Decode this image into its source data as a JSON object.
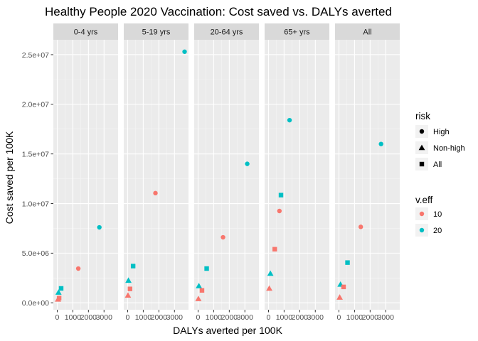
{
  "chart_data": {
    "type": "scatter",
    "title": "Healthy People 2020 Vaccination: Cost saved vs. DALYs averted",
    "xlabel": "DALYs averted per 100K",
    "ylabel": "Cost saved per 100K",
    "xlim": [
      -250,
      3900
    ],
    "ylim": [
      -700000,
      26500000
    ],
    "x_ticks": [
      0,
      1000,
      2000,
      3000
    ],
    "x_tick_labels": [
      "0",
      "1000",
      "2000",
      "3000"
    ],
    "y_ticks": [
      0,
      5000000,
      10000000,
      15000000,
      20000000,
      25000000
    ],
    "y_tick_labels": [
      "0.0e+00",
      "5.0e+06",
      "1.0e+07",
      "1.5e+07",
      "2.0e+07",
      "2.5e+07"
    ],
    "grid": true,
    "legend_position": "right",
    "facets": [
      "0-4 yrs",
      "5-19 yrs",
      "20-64 yrs",
      "65+ yrs",
      "All"
    ],
    "legends": [
      {
        "title": "risk",
        "entries": [
          {
            "label": "High",
            "shape": "circle"
          },
          {
            "label": "Non-high",
            "shape": "triangle"
          },
          {
            "label": "All",
            "shape": "square"
          }
        ]
      },
      {
        "title": "v.eff",
        "entries": [
          {
            "label": "10",
            "color": "#F8766D"
          },
          {
            "label": "20",
            "color": "#00BFC4"
          }
        ]
      }
    ],
    "points": [
      {
        "facet": "0-4 yrs",
        "risk": "High",
        "v_eff": "10",
        "x": 1350,
        "y": 3450000
      },
      {
        "facet": "0-4 yrs",
        "risk": "High",
        "v_eff": "20",
        "x": 2700,
        "y": 7600000
      },
      {
        "facet": "0-4 yrs",
        "risk": "Non-high",
        "v_eff": "10",
        "x": 50,
        "y": 350000
      },
      {
        "facet": "0-4 yrs",
        "risk": "Non-high",
        "v_eff": "20",
        "x": 80,
        "y": 1050000
      },
      {
        "facet": "0-4 yrs",
        "risk": "All",
        "v_eff": "10",
        "x": 120,
        "y": 480000
      },
      {
        "facet": "0-4 yrs",
        "risk": "All",
        "v_eff": "20",
        "x": 250,
        "y": 1450000
      },
      {
        "facet": "5-19 yrs",
        "risk": "High",
        "v_eff": "10",
        "x": 1780,
        "y": 11050000
      },
      {
        "facet": "5-19 yrs",
        "risk": "High",
        "v_eff": "20",
        "x": 3650,
        "y": 25300000
      },
      {
        "facet": "5-19 yrs",
        "risk": "Non-high",
        "v_eff": "10",
        "x": 20,
        "y": 750000
      },
      {
        "facet": "5-19 yrs",
        "risk": "Non-high",
        "v_eff": "20",
        "x": 50,
        "y": 2250000
      },
      {
        "facet": "5-19 yrs",
        "risk": "All",
        "v_eff": "10",
        "x": 150,
        "y": 1400000
      },
      {
        "facet": "5-19 yrs",
        "risk": "All",
        "v_eff": "20",
        "x": 350,
        "y": 3700000
      },
      {
        "facet": "20-64 yrs",
        "risk": "High",
        "v_eff": "10",
        "x": 1600,
        "y": 6600000
      },
      {
        "facet": "20-64 yrs",
        "risk": "High",
        "v_eff": "20",
        "x": 3150,
        "y": 14000000
      },
      {
        "facet": "20-64 yrs",
        "risk": "Non-high",
        "v_eff": "10",
        "x": 20,
        "y": 400000
      },
      {
        "facet": "20-64 yrs",
        "risk": "Non-high",
        "v_eff": "20",
        "x": 50,
        "y": 1700000
      },
      {
        "facet": "20-64 yrs",
        "risk": "All",
        "v_eff": "10",
        "x": 250,
        "y": 1250000
      },
      {
        "facet": "20-64 yrs",
        "risk": "All",
        "v_eff": "20",
        "x": 550,
        "y": 3450000
      },
      {
        "facet": "65+ yrs",
        "risk": "High",
        "v_eff": "10",
        "x": 700,
        "y": 9250000
      },
      {
        "facet": "65+ yrs",
        "risk": "High",
        "v_eff": "20",
        "x": 1350,
        "y": 18400000
      },
      {
        "facet": "65+ yrs",
        "risk": "Non-high",
        "v_eff": "10",
        "x": 50,
        "y": 1450000
      },
      {
        "facet": "65+ yrs",
        "risk": "Non-high",
        "v_eff": "20",
        "x": 120,
        "y": 2950000
      },
      {
        "facet": "65+ yrs",
        "risk": "All",
        "v_eff": "10",
        "x": 400,
        "y": 5400000
      },
      {
        "facet": "65+ yrs",
        "risk": "All",
        "v_eff": "20",
        "x": 800,
        "y": 10850000
      },
      {
        "facet": "All",
        "risk": "High",
        "v_eff": "10",
        "x": 1400,
        "y": 7650000
      },
      {
        "facet": "All",
        "risk": "High",
        "v_eff": "20",
        "x": 2700,
        "y": 16000000
      },
      {
        "facet": "All",
        "risk": "Non-high",
        "v_eff": "10",
        "x": 50,
        "y": 550000
      },
      {
        "facet": "All",
        "risk": "Non-high",
        "v_eff": "20",
        "x": 100,
        "y": 1850000
      },
      {
        "facet": "All",
        "risk": "All",
        "v_eff": "10",
        "x": 300,
        "y": 1600000
      },
      {
        "facet": "All",
        "risk": "All",
        "v_eff": "20",
        "x": 550,
        "y": 4050000
      }
    ]
  }
}
